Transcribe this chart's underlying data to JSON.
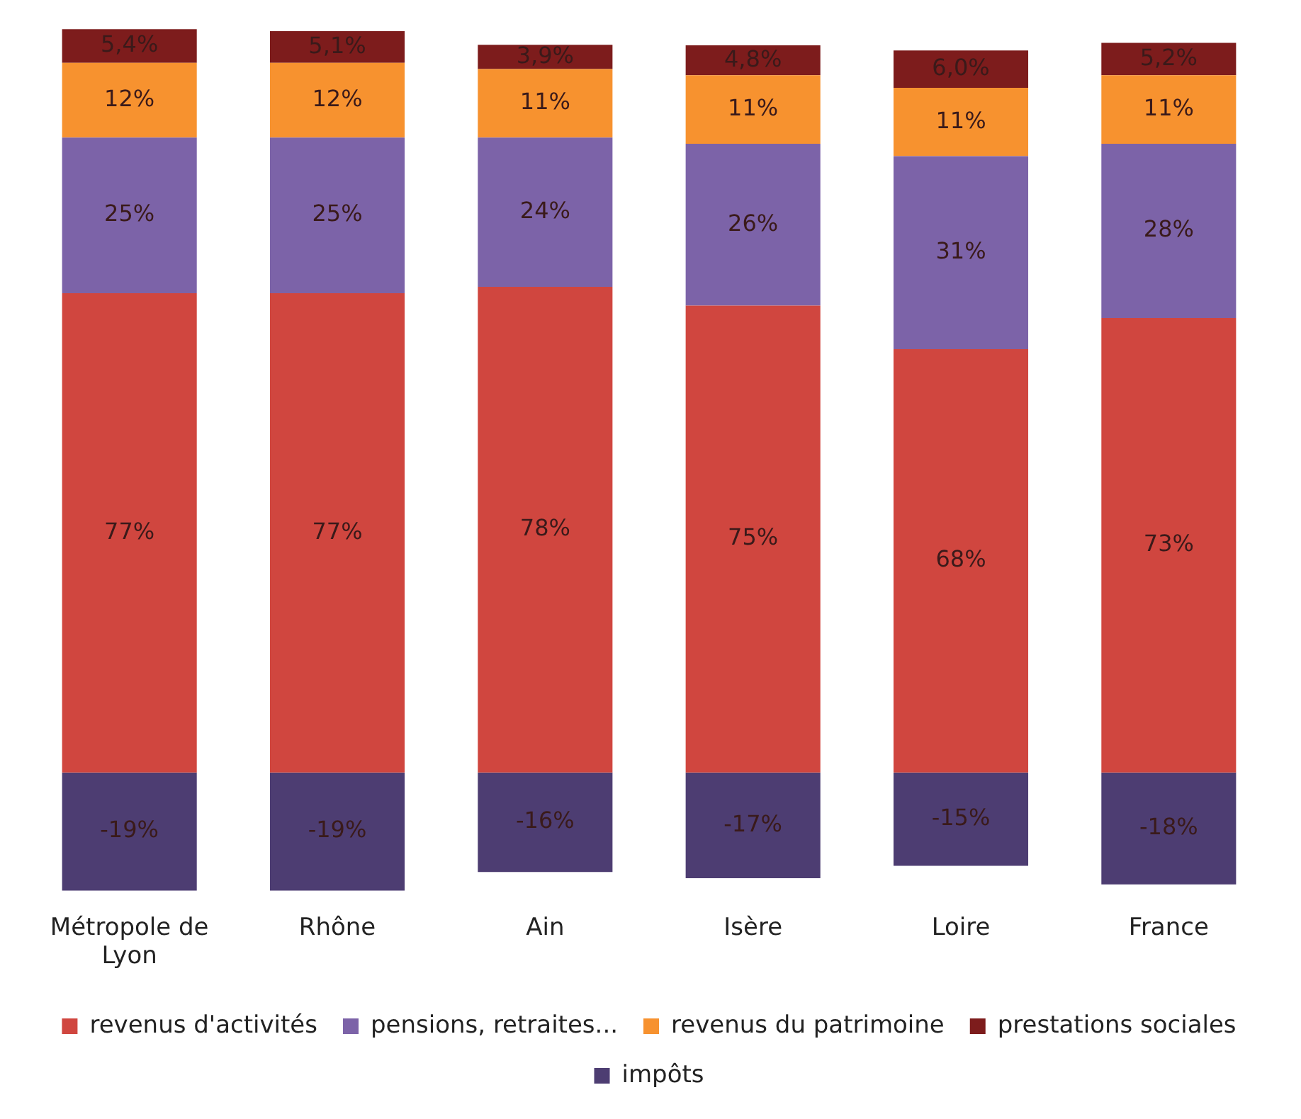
{
  "chart_data": {
    "type": "bar",
    "stacked": true,
    "legend": "bottom",
    "grid": false,
    "ylim": [
      -20,
      120
    ],
    "categories": [
      "Métropole de Lyon",
      "Rhône",
      "Ain",
      "Isère",
      "Loire",
      "France"
    ],
    "series": [
      {
        "name": "revenus d'activités",
        "color": "#d0463f",
        "values": [
          77,
          77,
          78,
          75,
          68,
          73
        ],
        "value_labels": [
          "77%",
          "77%",
          "78%",
          "75%",
          "68%",
          "73%"
        ]
      },
      {
        "name": "pensions, retraites...",
        "color": "#7c63a8",
        "values": [
          25,
          25,
          24,
          26,
          31,
          28
        ],
        "value_labels": [
          "25%",
          "25%",
          "24%",
          "26%",
          "31%",
          "28%"
        ]
      },
      {
        "name": "revenus du patrimoine",
        "color": "#f7922f",
        "values": [
          12,
          12,
          11,
          11,
          11,
          11
        ],
        "value_labels": [
          "12%",
          "12%",
          "11%",
          "11%",
          "11%",
          "11%"
        ]
      },
      {
        "name": "prestations sociales",
        "color": "#7d1c1c",
        "values": [
          5.4,
          5.1,
          3.9,
          4.8,
          6.0,
          5.2
        ],
        "value_labels": [
          "5,4%",
          "5,1%",
          "3,9%",
          "4,8%",
          "6,0%",
          "5,2%"
        ]
      },
      {
        "name": "impôts",
        "color": "#4d3d72",
        "values": [
          -19,
          -19,
          -16,
          -17,
          -15,
          -18
        ],
        "value_labels": [
          "-19%",
          "-19%",
          "-16%",
          "-17%",
          "-15%",
          "-18%"
        ]
      }
    ]
  }
}
